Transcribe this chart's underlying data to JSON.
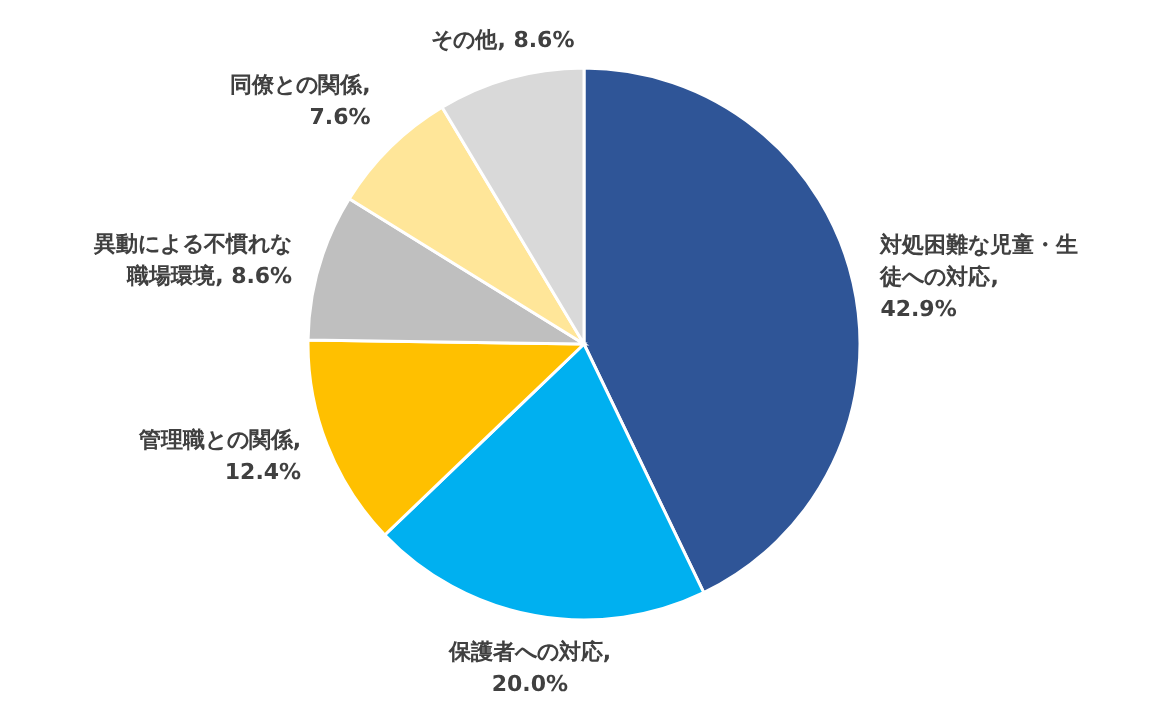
{
  "chart_data": {
    "type": "pie",
    "categories": [
      "対処困難な児童・生徒への対応",
      "保護者への対応",
      "管理職との関係",
      "異動による不慣れな職場環境",
      "同僚との関係",
      "その他"
    ],
    "values": [
      42.9,
      20.0,
      12.4,
      8.6,
      7.6,
      8.6
    ],
    "value_labels": [
      ", 42.9%",
      ", 20.0%",
      ", 12.4%",
      ", 8.6%",
      ", 7.6%",
      ", 8.6%"
    ],
    "colors": [
      "#2f5597",
      "#00b0f0",
      "#ffc000",
      "#bfbfbf",
      "#ffe699",
      "#d9d9d9"
    ],
    "legend": false
  }
}
